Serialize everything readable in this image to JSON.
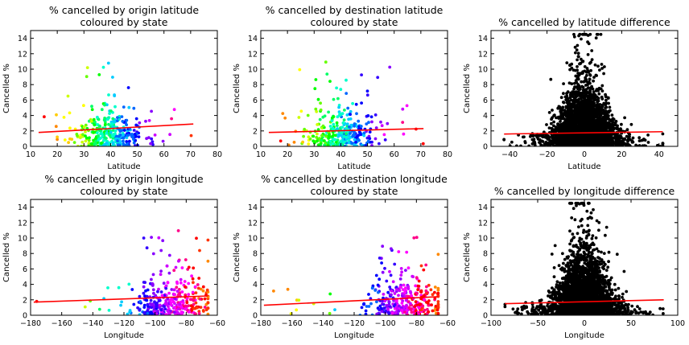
{
  "chart_data": [
    {
      "type": "scatter",
      "title": [
        "% cancelled by origin latitude",
        "coloured by state"
      ],
      "xlabel": "Latitude",
      "ylabel": "Cancelled %",
      "xlim": [
        10,
        80
      ],
      "ylim": [
        0,
        15
      ],
      "xticks": [
        "10",
        "20",
        "30",
        "40",
        "50",
        "60",
        "70",
        "80"
      ],
      "yticks": [
        "0",
        "2",
        "4",
        "6",
        "8",
        "10",
        "12",
        "14"
      ],
      "colour_by_state": true,
      "point_spread": [
        [
          15,
          71
        ],
        [
          0,
          11.8
        ]
      ],
      "trend_line": {
        "color": "#ff0000",
        "points": [
          [
            13,
            1.8
          ],
          [
            71,
            2.9
          ]
        ]
      }
    },
    {
      "type": "scatter",
      "title": [
        "% cancelled by destination latitude",
        "coloured by state"
      ],
      "xlabel": "Latitude",
      "ylabel": "Cancelled %",
      "xlim": [
        10,
        80
      ],
      "ylim": [
        0,
        15
      ],
      "xticks": [
        "10",
        "20",
        "30",
        "40",
        "50",
        "60",
        "70",
        "80"
      ],
      "yticks": [
        "0",
        "2",
        "4",
        "6",
        "8",
        "10",
        "12",
        "14"
      ],
      "colour_by_state": true,
      "point_spread": [
        [
          15,
          71
        ],
        [
          0,
          11.5
        ]
      ],
      "trend_line": {
        "color": "#ff0000",
        "points": [
          [
            13,
            1.8
          ],
          [
            71,
            2.3
          ]
        ]
      }
    },
    {
      "type": "scatter",
      "title": [
        "% cancelled by latitude difference"
      ],
      "xlabel": "Latitude",
      "ylabel": "Cancelled %",
      "xlim": [
        -50,
        50
      ],
      "ylim": [
        0,
        15
      ],
      "xticks": [
        "−40",
        "−20",
        "0",
        "20",
        "40"
      ],
      "yticks": [
        "0",
        "2",
        "4",
        "6",
        "8",
        "10",
        "12",
        "14"
      ],
      "colour_by_state": false,
      "point_color": "#000000",
      "point_spread": [
        [
          -43,
          42
        ],
        [
          0,
          14.5
        ]
      ],
      "trend_line": {
        "color": "#ff0000",
        "points": [
          [
            -43,
            1.6
          ],
          [
            42,
            1.9
          ]
        ]
      }
    },
    {
      "type": "scatter",
      "title": [
        "% cancelled by origin longitude",
        "coloured by state"
      ],
      "xlabel": "Longitude",
      "ylabel": "Cancelled %",
      "xlim": [
        -180,
        -60
      ],
      "ylim": [
        0,
        15
      ],
      "xticks": [
        "−180",
        "−160",
        "−140",
        "−120",
        "−100",
        "−80",
        "−60"
      ],
      "yticks": [
        "0",
        "2",
        "4",
        "6",
        "8",
        "10",
        "12",
        "14"
      ],
      "colour_by_state": true,
      "point_spread": [
        [
          -178,
          -66
        ],
        [
          0,
          11.8
        ]
      ],
      "trend_line": {
        "color": "#ff0000",
        "points": [
          [
            -178,
            1.7
          ],
          [
            -66,
            2.5
          ]
        ]
      }
    },
    {
      "type": "scatter",
      "title": [
        "% cancelled by destination longitude",
        "coloured by state"
      ],
      "xlabel": "Longitude",
      "ylabel": "Cancelled %",
      "xlim": [
        -180,
        -60
      ],
      "ylim": [
        0,
        15
      ],
      "xticks": [
        "−180",
        "−160",
        "−140",
        "−120",
        "−100",
        "−80",
        "−60"
      ],
      "yticks": [
        "0",
        "2",
        "4",
        "6",
        "8",
        "10",
        "12",
        "14"
      ],
      "colour_by_state": true,
      "point_spread": [
        [
          -178,
          -66
        ],
        [
          0,
          11.5
        ]
      ],
      "trend_line": {
        "color": "#ff0000",
        "points": [
          [
            -178,
            1.3
          ],
          [
            -66,
            2.4
          ]
        ]
      }
    },
    {
      "type": "scatter",
      "title": [
        "% cancelled by longitude difference"
      ],
      "xlabel": "Longitude",
      "ylabel": "Cancelled %",
      "xlim": [
        -100,
        100
      ],
      "ylim": [
        0,
        15
      ],
      "xticks": [
        "−100",
        "−50",
        "0",
        "50",
        "100"
      ],
      "yticks": [
        "0",
        "2",
        "4",
        "6",
        "8",
        "10",
        "12",
        "14"
      ],
      "colour_by_state": false,
      "point_color": "#000000",
      "point_spread": [
        [
          -85,
          85
        ],
        [
          0,
          14.5
        ]
      ],
      "trend_line": {
        "color": "#ff0000",
        "points": [
          [
            -85,
            1.5
          ],
          [
            85,
            2.0
          ]
        ]
      }
    }
  ]
}
